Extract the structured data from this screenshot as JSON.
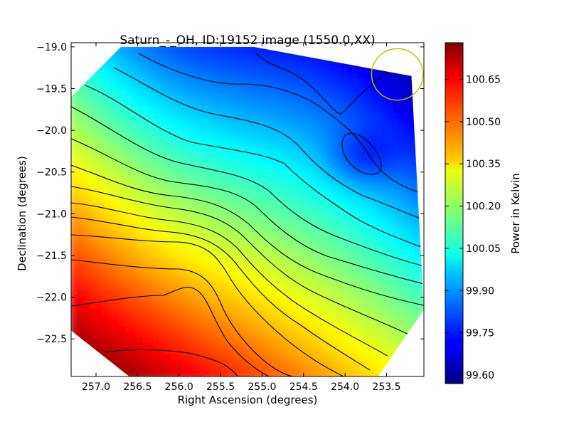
{
  "chart_data": {
    "type": "heatmap",
    "title": "Saturn_-_OH, ID:19152 image (1550.0,XX)",
    "xlabel": "Right Ascension (degrees)",
    "ylabel": "Declination (degrees)",
    "colorbar_label": "Power in Kelvin",
    "xlim": [
      257.3,
      253.05
    ],
    "ylim": [
      -22.95,
      -18.95
    ],
    "x_ticks": [
      257.0,
      256.5,
      256.0,
      255.5,
      255.0,
      254.5,
      254.0,
      253.5
    ],
    "x_tick_labels": [
      "257.0",
      "256.5",
      "256.0",
      "255.5",
      "255.0",
      "254.5",
      "254.0",
      "253.5"
    ],
    "y_ticks": [
      -19.0,
      -19.5,
      -20.0,
      -20.5,
      -21.0,
      -21.5,
      -22.0,
      -22.5
    ],
    "y_tick_labels": [
      "−19.0",
      "−19.5",
      "−20.0",
      "−20.5",
      "−21.0",
      "−21.5",
      "−22.0",
      "−22.5"
    ],
    "colorbar_range": [
      99.57,
      100.78
    ],
    "colorbar_ticks": [
      99.6,
      99.75,
      99.9,
      100.05,
      100.2,
      100.35,
      100.5,
      100.65
    ],
    "colorbar_tick_labels": [
      "99.60",
      "99.75",
      "99.90",
      "100.05",
      "100.20",
      "100.35",
      "100.50",
      "100.65"
    ],
    "colormap": "jet",
    "grid": false,
    "beam_marker": {
      "ra": 253.37,
      "dec": -19.33,
      "radius_deg": 0.31,
      "color": "#bfbf00"
    },
    "diamond_corners": [
      {
        "ra": 255.1,
        "dec": -19.0
      },
      {
        "ra": 253.2,
        "dec": -19.35
      },
      {
        "ra": 253.05,
        "dec": -22.15
      },
      {
        "ra": 253.6,
        "dec": -22.95
      },
      {
        "ra": 256.6,
        "dec": -22.95
      },
      {
        "ra": 257.3,
        "dec": -22.4
      },
      {
        "ra": 257.3,
        "dec": -19.6
      },
      {
        "ra": 256.7,
        "dec": -19.0
      }
    ]
  }
}
